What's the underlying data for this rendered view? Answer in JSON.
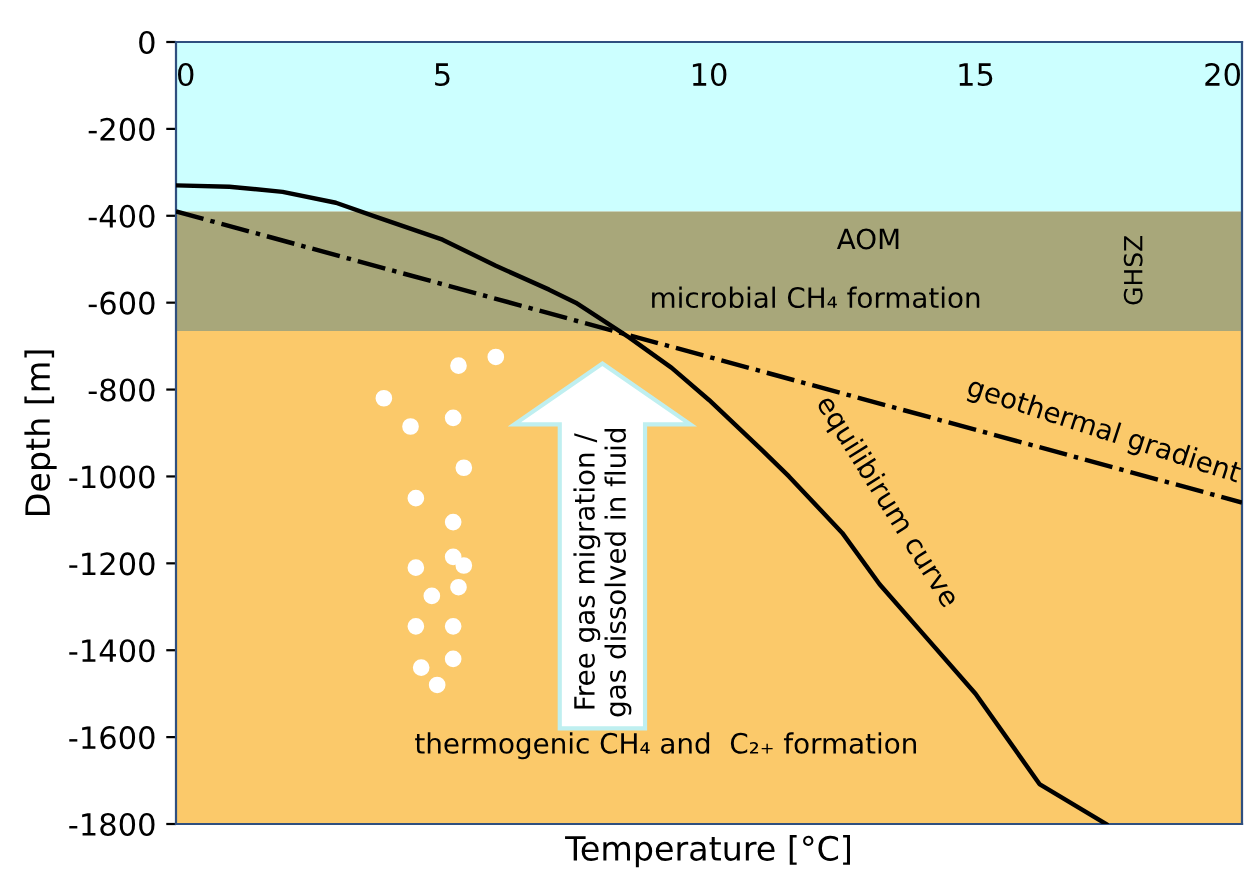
{
  "chart_data": {
    "type": "line",
    "xlabel": "Temperature [°C]",
    "ylabel": "Depth [m]",
    "xlim": [
      0,
      20
    ],
    "ylim": [
      -1800,
      0
    ],
    "xticks": [
      0,
      5,
      10,
      15,
      20
    ],
    "yticks": [
      0,
      -200,
      -400,
      -600,
      -800,
      -1000,
      -1200,
      -1400,
      -1600,
      -1800
    ],
    "series": [
      {
        "name": "equilibirum curve",
        "color": "#000000",
        "line_style": "solid",
        "x": [
          0,
          1,
          2,
          3,
          3.7,
          5,
          6,
          7,
          7.5,
          8.5,
          9.3,
          10,
          11,
          11.5,
          12.5,
          13.2,
          14,
          15,
          16.2,
          17.45
        ],
        "values": [
          -330,
          -333,
          -345,
          -370,
          -400,
          -455,
          -515,
          -570,
          -600,
          -680,
          -750,
          -824,
          -940,
          -1000,
          -1130,
          -1248,
          -1360,
          -1500,
          -1708,
          -1800
        ]
      },
      {
        "name": "geothermal gradient",
        "color": "#000000",
        "line_style": "dashdot",
        "x": [
          0,
          20
        ],
        "values": [
          -390,
          -1060
        ]
      }
    ],
    "bands": [
      {
        "axis": "y",
        "from": 0,
        "to": -390,
        "label": null,
        "color": "#ccffff"
      },
      {
        "axis": "y",
        "from": -390,
        "to": -665,
        "label": null,
        "color": "#a8a77a"
      },
      {
        "axis": "y",
        "from": -665,
        "to": -1800,
        "label": null,
        "color": "#fbc96a"
      }
    ],
    "annotations": [
      "AOM",
      "microbial CH₄ formation",
      "GHSZ",
      "thermogenic CH₄ and  C₂₊ formation",
      "Free gas migration /\ngas dissolved in fluid"
    ],
    "grid": false,
    "legend": false
  }
}
